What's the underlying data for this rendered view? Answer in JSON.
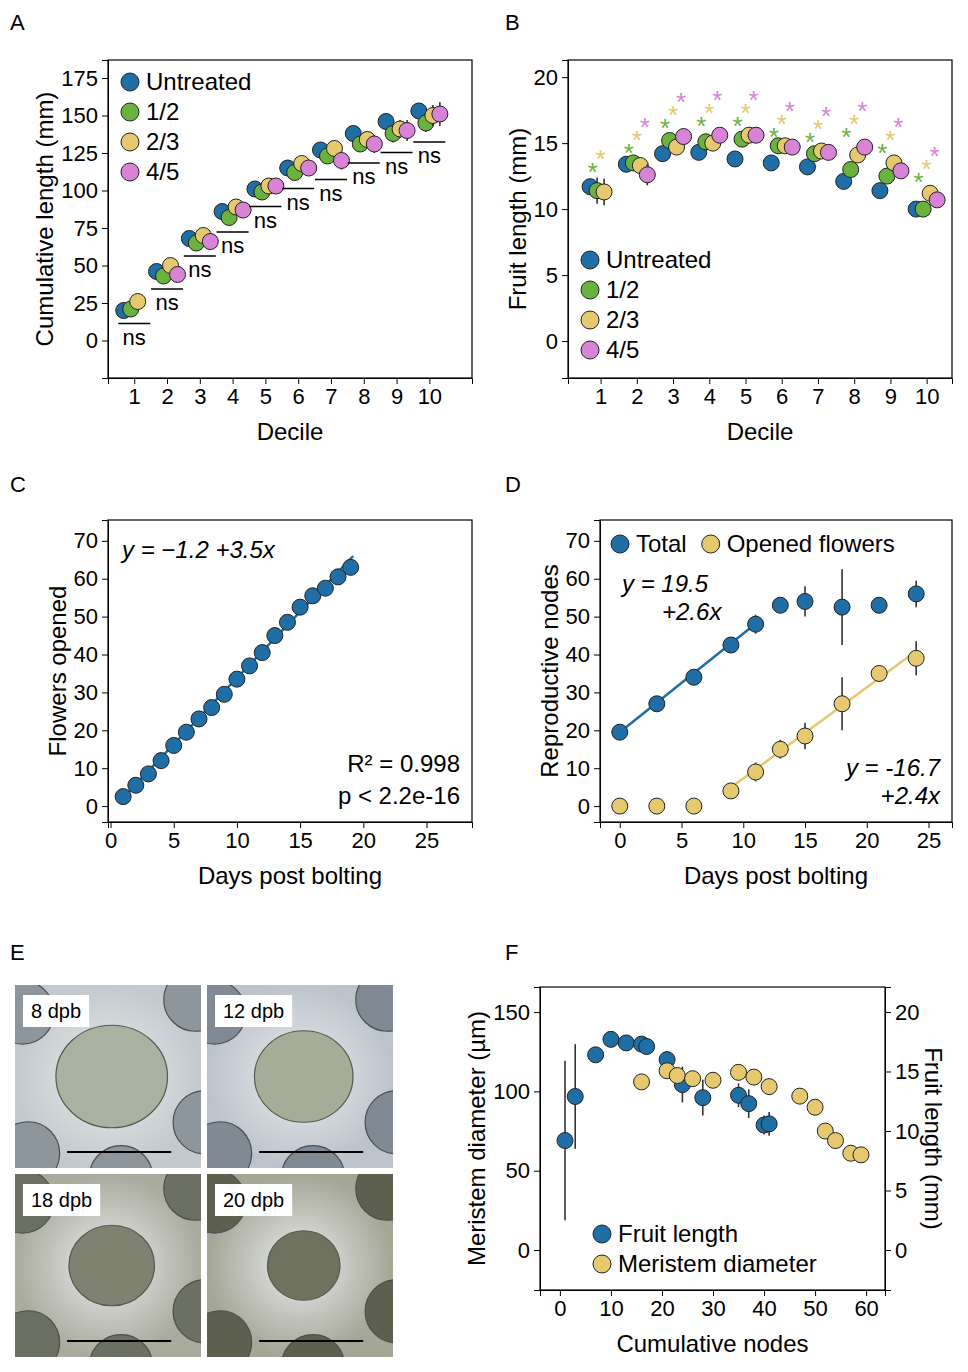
{
  "chart_data": [
    {
      "panel": "A",
      "type": "scatter",
      "x_label": "Decile",
      "y_label": "Cumulative length (mm)",
      "x": [
        1,
        2,
        3,
        4,
        5,
        6,
        7,
        8,
        9,
        10
      ],
      "xlim": [
        0.2,
        11.3
      ],
      "xticks": [
        1,
        2,
        3,
        4,
        5,
        6,
        7,
        8,
        9,
        10
      ],
      "ylim": [
        -25,
        187
      ],
      "yticks": [
        0,
        25,
        50,
        75,
        100,
        125,
        150,
        175
      ],
      "legend": "upper left",
      "marker": "circle",
      "series": [
        {
          "name": "Untreated",
          "color": "#1f6ea6",
          "values": [
            20,
            46,
            68,
            86,
            101,
            115,
            127,
            138,
            146,
            153
          ],
          "errors": [
            2,
            2,
            2,
            2,
            2,
            3,
            3,
            3,
            3,
            3
          ]
        },
        {
          "name": "1/2",
          "color": "#6ab23e",
          "values": [
            21,
            43,
            65,
            82,
            99,
            112,
            123,
            131,
            138,
            145
          ],
          "errors": [
            2,
            2,
            2,
            3,
            3,
            4,
            4,
            5,
            6,
            6
          ]
        },
        {
          "name": "2/3",
          "color": "#e6c86e",
          "values": [
            26,
            50,
            70,
            89,
            103,
            118,
            128,
            134,
            141,
            150
          ],
          "errors": [
            2,
            3,
            3,
            3,
            4,
            4,
            5,
            5,
            6,
            7
          ]
        },
        {
          "name": "4/5",
          "color": "#d883d6",
          "values": [
            null,
            44,
            66,
            87,
            103,
            115,
            120,
            131,
            140,
            151
          ],
          "errors": [
            null,
            3,
            3,
            3,
            4,
            5,
            6,
            6,
            7,
            8
          ]
        }
      ],
      "significance": [
        "ns",
        "ns",
        "ns",
        "ns",
        "ns",
        "ns",
        "ns",
        "ns",
        "ns",
        "ns"
      ]
    },
    {
      "panel": "B",
      "type": "scatter",
      "x_label": "Decile",
      "y_label": "Fruit length (mm)",
      "x": [
        1,
        2,
        3,
        4,
        5,
        6,
        7,
        8,
        9,
        10
      ],
      "xlim": [
        0.1,
        10.7
      ],
      "xticks": [
        1,
        2,
        3,
        4,
        5,
        6,
        7,
        8,
        9,
        10
      ],
      "ylim": [
        -2.8,
        21.3
      ],
      "yticks": [
        0,
        5,
        10,
        15,
        20
      ],
      "legend": "lower left",
      "marker": "circle",
      "series": [
        {
          "name": "Untreated",
          "color": "#1f6ea6",
          "values": [
            11.7,
            13.4,
            14.2,
            14.3,
            13.8,
            13.5,
            13.2,
            12.1,
            11.4,
            10.0
          ],
          "errors": [
            0.5,
            0.4,
            0.3,
            0.3,
            0.3,
            0.3,
            0.3,
            0.3,
            0.3,
            0.3
          ]
        },
        {
          "name": "1/2",
          "color": "#6ab23e",
          "values": [
            11.4,
            13.5,
            15.2,
            15.1,
            15.3,
            14.8,
            14.2,
            13.0,
            12.5,
            10.0
          ],
          "errors": [
            1.0,
            0.4,
            0.3,
            0.3,
            0.3,
            0.3,
            0.3,
            0.3,
            0.4,
            0.5
          ],
          "significance": [
            "*",
            "*",
            "*",
            "*",
            "*",
            "*",
            "*",
            "*",
            "*",
            "*"
          ]
        },
        {
          "name": "2/3",
          "color": "#e6c86e",
          "values": [
            11.3,
            13.3,
            14.7,
            15.0,
            15.6,
            14.8,
            14.4,
            14.1,
            13.5,
            11.2
          ],
          "errors": [
            1.0,
            0.5,
            0.3,
            0.3,
            0.3,
            0.3,
            0.3,
            0.4,
            0.4,
            0.5
          ],
          "significance": [
            "*",
            "*",
            "*",
            "*",
            "*",
            "*",
            "*",
            "*",
            "*",
            "*"
          ]
        },
        {
          "name": "4/5",
          "color": "#d883d6",
          "values": [
            null,
            12.6,
            15.5,
            15.6,
            15.6,
            14.7,
            14.3,
            14.7,
            12.9,
            10.7
          ],
          "errors": [
            null,
            0.8,
            0.3,
            0.3,
            0.3,
            0.3,
            0.3,
            0.4,
            0.4,
            0.5
          ],
          "significance": [
            null,
            "*",
            "*",
            "*",
            "*",
            "*",
            "*",
            "*",
            "*",
            "*"
          ]
        }
      ]
    },
    {
      "panel": "C",
      "type": "scatter",
      "x_label": "Days post bolting",
      "y_label": "Flowers opened",
      "x": [
        1,
        2,
        3,
        4,
        5,
        6,
        7,
        8,
        9,
        10,
        11,
        12,
        13,
        14,
        15,
        16,
        17,
        18,
        19
      ],
      "xlim": [
        -0.2,
        28.6
      ],
      "xticks": [
        0,
        5,
        10,
        15,
        20,
        25
      ],
      "ylim": [
        -4.2,
        75.5
      ],
      "yticks": [
        0,
        10,
        20,
        30,
        40,
        50,
        60,
        70
      ],
      "marker": "circle",
      "series": [
        {
          "color": "#1f6ea6",
          "values": [
            2.5,
            5.5,
            8.5,
            12,
            16,
            19.5,
            23,
            26,
            29.5,
            33.5,
            37,
            40.5,
            45,
            48.5,
            52.5,
            55.5,
            57.5,
            60.5,
            63
          ]
        }
      ],
      "fit": {
        "x": [
          1,
          19.2
        ],
        "values": [
          2.3,
          66
        ]
      },
      "annotations": [
        "y = −1.2 +3.5x",
        "R² = 0.998",
        "p < 2.2e-16"
      ]
    },
    {
      "panel": "D",
      "type": "scatter",
      "x_label": "Days post bolting",
      "y_label": "Reproductive nodes",
      "x": [
        0,
        3,
        6,
        9,
        11,
        13,
        15,
        18,
        21,
        24
      ],
      "xlim": [
        -1.6,
        26.9
      ],
      "xticks": [
        0,
        5,
        10,
        15,
        20,
        25
      ],
      "ylim": [
        -4.2,
        75.5
      ],
      "yticks": [
        0,
        10,
        20,
        30,
        40,
        50,
        60,
        70
      ],
      "legend": "top",
      "marker": "circle",
      "series": [
        {
          "name": "Total",
          "color": "#1f6ea6",
          "values": [
            19.5,
            27,
            34,
            42.5,
            48,
            53,
            54,
            52.5,
            53,
            56
          ],
          "errors": [
            0.5,
            1,
            0.5,
            1.5,
            2.5,
            2,
            4,
            10,
            1,
            3.5
          ],
          "fit": {
            "x": [
              0,
              11
            ],
            "values": [
              19.5,
              48.1
            ],
            "label": [
              "y = 19.5",
              "+2.6x"
            ]
          }
        },
        {
          "name": "Opened flowers",
          "color": "#e6c86e",
          "values": [
            0,
            0,
            0,
            4,
            9,
            15,
            18.5,
            27,
            35,
            39
          ],
          "errors": [
            0,
            0,
            0,
            0.5,
            2.5,
            2.5,
            3.5,
            7,
            1.5,
            4.5
          ],
          "fit": {
            "x": [
              9,
              24
            ],
            "values": [
              4.9,
              40.9
            ],
            "label": [
              "y = -16.7",
              "+2.4x"
            ]
          }
        }
      ]
    },
    {
      "panel": "E",
      "type": "image",
      "images": [
        {
          "label": "8 dpb"
        },
        {
          "label": "12 dpb"
        },
        {
          "label": "18 dpb"
        },
        {
          "label": "20 dpb"
        }
      ]
    },
    {
      "panel": "F",
      "type": "scatter",
      "x_label": "Cumulative nodes",
      "y_label": "Meristem diameter (µm)",
      "y2_label": "Fruit length (mm)",
      "xlim": [
        -3.9,
        63.7
      ],
      "xticks": [
        0,
        10,
        20,
        30,
        40,
        50,
        60
      ],
      "ylim": [
        -25.2,
        165.8
      ],
      "yticks": [
        0,
        50,
        100,
        150
      ],
      "y2lim": [
        -3.36,
        22.1
      ],
      "y2ticks": [
        0,
        5,
        10,
        15,
        20
      ],
      "legend": "lower left",
      "marker": "circle",
      "series": [
        {
          "name": "Fruit length",
          "color": "#1f6ea6",
          "axis": "y2",
          "x": [
            1,
            3,
            7,
            10,
            13,
            16,
            17,
            21,
            24,
            28,
            35,
            37,
            40,
            41
          ],
          "values": [
            9.2,
            12.9,
            16.4,
            17.7,
            17.4,
            17.3,
            17.1,
            16.0,
            13.9,
            12.8,
            13.0,
            12.3,
            10.5,
            10.6
          ],
          "errors": [
            6.7,
            4.4,
            0.3,
            0.5,
            0.6,
            0.5,
            0.5,
            0.4,
            1.5,
            1.5,
            1.0,
            1.2,
            0.8,
            1.0
          ]
        },
        {
          "name": "Meristem diameter",
          "color": "#e6c86e",
          "x": [
            16,
            21,
            23,
            26,
            30,
            35,
            38,
            41,
            47,
            50,
            52,
            54,
            57,
            59
          ],
          "values": [
            106,
            113,
            110,
            108,
            107,
            112,
            109,
            103,
            97,
            90,
            75,
            69,
            61,
            60
          ],
          "errors": [
            2,
            2,
            2,
            2,
            2,
            5,
            4,
            5,
            4,
            2,
            2,
            2,
            2,
            2
          ]
        }
      ]
    }
  ]
}
